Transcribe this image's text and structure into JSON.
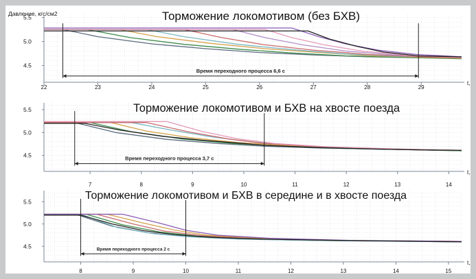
{
  "colors": {
    "background": "#c9cacc",
    "panel": "#ffffff",
    "grid": "#d4d9e2",
    "axis": "#7a8797",
    "ink": "#111111",
    "annotation": "#222222"
  },
  "y_unit_label": "Давление, кгс/см2",
  "x_unit_label": "t, c",
  "chart_data": [
    {
      "type": "line",
      "title": "Торможение локомотивом (без БХВ)",
      "xlabel": "t, c",
      "ylabel": "Давление, кгс/см2",
      "xlim": [
        22.0,
        29.75
      ],
      "ylim": [
        4.15,
        5.55
      ],
      "x_ticks": [
        "22",
        "23",
        "24",
        "25",
        "26",
        "27",
        "28",
        "29"
      ],
      "y_ticks": [
        "5.5",
        "5.0",
        "4.5"
      ],
      "grid": true,
      "annotation": {
        "text": "Время переходного процесса 6,6 с",
        "x_start": 22.35,
        "x_end": 28.95,
        "y": 4.28
      },
      "series": [
        {
          "color": "#5a6b7d",
          "values": [
            [
              22.0,
              5.25
            ],
            [
              22.35,
              5.25
            ],
            [
              23.0,
              5.1
            ],
            [
              24.0,
              4.95
            ],
            [
              25.0,
              4.85
            ],
            [
              26.0,
              4.77
            ],
            [
              27.0,
              4.72
            ],
            [
              28.0,
              4.68
            ],
            [
              29.0,
              4.66
            ],
            [
              29.75,
              4.65
            ]
          ]
        },
        {
          "color": "#3d8a4a",
          "values": [
            [
              22.0,
              5.25
            ],
            [
              22.8,
              5.25
            ],
            [
              23.6,
              5.08
            ],
            [
              24.6,
              4.94
            ],
            [
              25.6,
              4.84
            ],
            [
              26.6,
              4.76
            ],
            [
              27.6,
              4.7
            ],
            [
              28.6,
              4.67
            ],
            [
              29.75,
              4.64
            ]
          ]
        },
        {
          "color": "#d4a14a",
          "values": [
            [
              22.0,
              5.25
            ],
            [
              23.4,
              5.25
            ],
            [
              24.1,
              5.1
            ],
            [
              25.1,
              4.96
            ],
            [
              26.1,
              4.85
            ],
            [
              27.1,
              4.77
            ],
            [
              28.1,
              4.7
            ],
            [
              29.0,
              4.67
            ],
            [
              29.75,
              4.65
            ]
          ]
        },
        {
          "color": "#7ab8c4",
          "values": [
            [
              22.0,
              5.25
            ],
            [
              23.9,
              5.25
            ],
            [
              24.6,
              5.1
            ],
            [
              25.6,
              4.94
            ],
            [
              26.6,
              4.83
            ],
            [
              27.6,
              4.74
            ],
            [
              28.6,
              4.69
            ],
            [
              29.75,
              4.66
            ]
          ]
        },
        {
          "color": "#c96a6a",
          "values": [
            [
              22.0,
              5.25
            ],
            [
              24.6,
              5.25
            ],
            [
              25.3,
              5.08
            ],
            [
              26.1,
              4.93
            ],
            [
              27.0,
              4.82
            ],
            [
              28.0,
              4.73
            ],
            [
              29.0,
              4.68
            ],
            [
              29.75,
              4.66
            ]
          ]
        },
        {
          "color": "#b18fc8",
          "values": [
            [
              22.0,
              5.25
            ],
            [
              25.5,
              5.25
            ],
            [
              26.1,
              5.08
            ],
            [
              26.8,
              4.93
            ],
            [
              27.6,
              4.8
            ],
            [
              28.5,
              4.72
            ],
            [
              29.75,
              4.67
            ]
          ]
        },
        {
          "color": "#e39ab8",
          "values": [
            [
              22.0,
              5.25
            ],
            [
              26.1,
              5.25
            ],
            [
              26.6,
              5.08
            ],
            [
              27.2,
              4.93
            ],
            [
              27.9,
              4.8
            ],
            [
              28.8,
              4.71
            ],
            [
              29.75,
              4.67
            ]
          ]
        },
        {
          "color": "#8b5cb5",
          "values": [
            [
              22.0,
              5.28
            ],
            [
              26.6,
              5.28
            ],
            [
              27.1,
              5.1
            ],
            [
              27.6,
              4.95
            ],
            [
              28.2,
              4.82
            ],
            [
              28.9,
              4.73
            ],
            [
              29.75,
              4.68
            ]
          ]
        },
        {
          "color": "#222222",
          "values": [
            [
              22.0,
              5.22
            ],
            [
              26.9,
              5.22
            ],
            [
              27.3,
              5.05
            ],
            [
              27.8,
              4.9
            ],
            [
              28.3,
              4.78
            ],
            [
              28.95,
              4.7
            ],
            [
              29.75,
              4.68
            ]
          ]
        }
      ]
    },
    {
      "type": "line",
      "title": "Торможение локомотивом и БХВ на хвосте поезда",
      "xlabel": "t, c",
      "ylabel": "",
      "xlim": [
        6.1,
        14.25
      ],
      "ylim": [
        4.15,
        5.65
      ],
      "x_ticks": [
        "7",
        "8",
        "9",
        "10",
        "11",
        "12",
        "13",
        "14"
      ],
      "y_ticks": [
        "5.5",
        "5.0",
        "4.5"
      ],
      "grid": true,
      "annotation": {
        "text": "Время переходного процесса 3,7 с",
        "x_start": 6.7,
        "x_end": 10.4,
        "y": 4.32
      },
      "series": [
        {
          "color": "#5a6b7d",
          "values": [
            [
              6.1,
              5.22
            ],
            [
              6.7,
              5.22
            ],
            [
              7.5,
              5.0
            ],
            [
              8.5,
              4.85
            ],
            [
              9.5,
              4.76
            ],
            [
              10.4,
              4.7
            ],
            [
              11.5,
              4.66
            ],
            [
              12.5,
              4.64
            ],
            [
              13.5,
              4.62
            ],
            [
              14.25,
              4.6
            ]
          ]
        },
        {
          "color": "#3d8a4a",
          "values": [
            [
              6.1,
              5.22
            ],
            [
              7.0,
              5.22
            ],
            [
              7.8,
              5.02
            ],
            [
              8.8,
              4.86
            ],
            [
              9.8,
              4.76
            ],
            [
              10.8,
              4.7
            ],
            [
              12.0,
              4.65
            ],
            [
              13.0,
              4.63
            ],
            [
              14.25,
              4.6
            ]
          ]
        },
        {
          "color": "#d4a14a",
          "values": [
            [
              6.1,
              5.22
            ],
            [
              7.4,
              5.22
            ],
            [
              8.1,
              5.03
            ],
            [
              9.0,
              4.88
            ],
            [
              9.9,
              4.78
            ],
            [
              10.9,
              4.71
            ],
            [
              12.0,
              4.66
            ],
            [
              13.5,
              4.62
            ],
            [
              14.25,
              4.61
            ]
          ]
        },
        {
          "color": "#7ab8c4",
          "values": [
            [
              6.1,
              5.22
            ],
            [
              7.8,
              5.22
            ],
            [
              8.6,
              5.05
            ],
            [
              9.4,
              4.9
            ],
            [
              10.2,
              4.79
            ],
            [
              11.2,
              4.71
            ],
            [
              12.5,
              4.65
            ],
            [
              14.25,
              4.61
            ]
          ]
        },
        {
          "color": "#c96a6a",
          "values": [
            [
              6.1,
              5.22
            ],
            [
              8.1,
              5.22
            ],
            [
              8.9,
              5.02
            ],
            [
              9.7,
              4.86
            ],
            [
              10.4,
              4.76
            ],
            [
              11.5,
              4.69
            ],
            [
              12.8,
              4.64
            ],
            [
              14.25,
              4.61
            ]
          ]
        },
        {
          "color": "#e39ab8",
          "values": [
            [
              6.1,
              5.24
            ],
            [
              8.5,
              5.24
            ],
            [
              9.2,
              5.02
            ],
            [
              9.9,
              4.86
            ],
            [
              10.6,
              4.76
            ],
            [
              11.6,
              4.69
            ],
            [
              13.0,
              4.64
            ],
            [
              14.25,
              4.61
            ]
          ]
        },
        {
          "color": "#222222",
          "values": [
            [
              6.1,
              5.2
            ],
            [
              6.9,
              5.2
            ],
            [
              7.6,
              5.05
            ],
            [
              8.4,
              4.92
            ],
            [
              9.2,
              4.83
            ],
            [
              10.0,
              4.76
            ],
            [
              10.4,
              4.72
            ],
            [
              11.5,
              4.67
            ],
            [
              12.5,
              4.64
            ],
            [
              13.5,
              4.62
            ],
            [
              14.25,
              4.61
            ]
          ]
        }
      ]
    },
    {
      "type": "line",
      "title": "Торможение локомотивом и БХВ в середине и в хвосте поезда",
      "xlabel": "t, c",
      "ylabel": "",
      "xlim": [
        7.3,
        15.25
      ],
      "ylim": [
        4.15,
        5.75
      ],
      "x_ticks": [
        "8",
        "9",
        "10",
        "11",
        "12",
        "13",
        "14",
        "15"
      ],
      "y_ticks": [
        "5.5",
        "5.0",
        "4.5"
      ],
      "grid": true,
      "annotation": {
        "text": "Время переходного процесса 2 с",
        "x_start": 8.0,
        "x_end": 10.0,
        "y": 4.33
      },
      "series": [
        {
          "color": "#5a6b7d",
          "values": [
            [
              7.3,
              5.22
            ],
            [
              7.9,
              5.22
            ],
            [
              8.6,
              4.95
            ],
            [
              9.3,
              4.8
            ],
            [
              10.0,
              4.72
            ],
            [
              11.0,
              4.67
            ],
            [
              12.0,
              4.64
            ],
            [
              13.5,
              4.62
            ],
            [
              15.25,
              4.6
            ]
          ]
        },
        {
          "color": "#3d8a4a",
          "values": [
            [
              7.3,
              5.22
            ],
            [
              8.1,
              5.22
            ],
            [
              8.8,
              4.98
            ],
            [
              9.5,
              4.82
            ],
            [
              10.2,
              4.73
            ],
            [
              11.2,
              4.67
            ],
            [
              12.5,
              4.63
            ],
            [
              15.25,
              4.6
            ]
          ]
        },
        {
          "color": "#7ab8c4",
          "values": [
            [
              7.3,
              5.22
            ],
            [
              8.0,
              5.22
            ],
            [
              8.7,
              4.92
            ],
            [
              9.4,
              4.78
            ],
            [
              10.1,
              4.71
            ],
            [
              11.0,
              4.66
            ],
            [
              13.0,
              4.62
            ],
            [
              15.25,
              4.6
            ]
          ]
        },
        {
          "color": "#c96a6a",
          "values": [
            [
              7.3,
              5.22
            ],
            [
              8.3,
              5.22
            ],
            [
              9.0,
              5.0
            ],
            [
              9.6,
              4.84
            ],
            [
              10.3,
              4.74
            ],
            [
              11.3,
              4.67
            ],
            [
              13.0,
              4.63
            ],
            [
              15.25,
              4.61
            ]
          ]
        },
        {
          "color": "#d4a14a",
          "values": [
            [
              7.3,
              5.22
            ],
            [
              8.5,
              5.22
            ],
            [
              9.2,
              5.02
            ],
            [
              9.8,
              4.86
            ],
            [
              10.4,
              4.75
            ],
            [
              11.4,
              4.68
            ],
            [
              13.0,
              4.63
            ],
            [
              15.25,
              4.61
            ]
          ]
        },
        {
          "color": "#8b5cb5",
          "values": [
            [
              7.3,
              5.22
            ],
            [
              8.8,
              5.22
            ],
            [
              9.5,
              5.02
            ],
            [
              10.0,
              4.86
            ],
            [
              10.6,
              4.75
            ],
            [
              11.6,
              4.68
            ],
            [
              13.2,
              4.63
            ],
            [
              15.25,
              4.61
            ]
          ]
        },
        {
          "color": "#222222",
          "values": [
            [
              7.3,
              5.2
            ],
            [
              8.0,
              5.2
            ],
            [
              8.6,
              5.0
            ],
            [
              9.2,
              4.85
            ],
            [
              9.8,
              4.76
            ],
            [
              10.5,
              4.7
            ],
            [
              11.5,
              4.66
            ],
            [
              13.0,
              4.63
            ],
            [
              15.25,
              4.6
            ]
          ]
        }
      ]
    }
  ]
}
